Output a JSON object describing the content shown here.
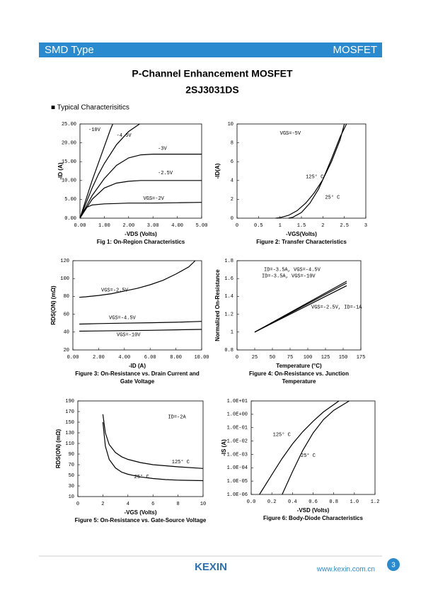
{
  "header": {
    "left": "SMD Type",
    "right": "MOSFET"
  },
  "title": "P-Channel Enhancement MOSFET",
  "part": "2SJ3031DS",
  "section": "■ Typical Characterisitics",
  "footer": {
    "brand": "KEXIN",
    "url": "www.kexin.com.cn",
    "page": "3"
  },
  "chart_data": [
    {
      "type": "line",
      "title": "Fig 1: On-Region Characteristics",
      "xlabel": "-VDS (Volts)",
      "ylabel": "-ID (A)",
      "xlim": [
        0,
        5
      ],
      "ylim": [
        0,
        25
      ],
      "xticks": [
        {
          "value": 0,
          "label": "0.00"
        },
        {
          "value": 1,
          "label": "1.00"
        },
        {
          "value": 2,
          "label": "2.00"
        },
        {
          "value": 3,
          "label": "3.00"
        },
        {
          "value": 4,
          "label": "4.00"
        },
        {
          "value": 5,
          "label": "5.00"
        }
      ],
      "yticks": [
        {
          "value": 0,
          "label": "0.00"
        },
        {
          "value": 5,
          "label": "5.00"
        },
        {
          "value": 10,
          "label": "10.00"
        },
        {
          "value": 15,
          "label": "15.00"
        },
        {
          "value": 20,
          "label": "20.00"
        },
        {
          "value": 25,
          "label": "25.00"
        }
      ],
      "series": [
        {
          "name": "-10V",
          "color": "#000",
          "x": [
            0,
            0.25,
            0.5,
            0.75,
            1,
            1.25,
            1.35
          ],
          "values": [
            0,
            5,
            10,
            14.5,
            19,
            23.5,
            25
          ]
        },
        {
          "name": "-4.5V",
          "color": "#000",
          "x": [
            0,
            0.25,
            0.5,
            0.75,
            1,
            1.5,
            2,
            2.45
          ],
          "values": [
            0,
            4,
            8,
            11.5,
            14.5,
            19.5,
            23,
            25
          ]
        },
        {
          "name": "-3V",
          "color": "#000",
          "x": [
            0,
            0.25,
            0.5,
            1,
            1.5,
            2,
            2.5,
            3,
            4,
            5
          ],
          "values": [
            0,
            3,
            6,
            10.5,
            14,
            16,
            16.8,
            17,
            17,
            17
          ]
        },
        {
          "name": "-2.5V",
          "color": "#000",
          "x": [
            0,
            0.25,
            0.5,
            1,
            1.5,
            2,
            2.5,
            3,
            4,
            5
          ],
          "values": [
            0,
            2.5,
            5,
            8,
            9.3,
            9.8,
            10,
            10,
            10,
            10
          ]
        },
        {
          "name": "VGS=-2V",
          "color": "#000",
          "x": [
            0,
            0.1,
            0.25,
            0.5,
            1,
            1.5,
            2,
            3,
            4,
            5
          ],
          "values": [
            0,
            1.5,
            2.8,
            3.5,
            3.8,
            3.9,
            4,
            4,
            4.1,
            4.2
          ]
        }
      ]
    },
    {
      "type": "line",
      "title": "Figure 2: Transfer Characteristics",
      "xlabel": "-VGS(Volts)",
      "ylabel": "-ID(A)",
      "xlim": [
        0,
        3
      ],
      "ylim": [
        0,
        10
      ],
      "xticks": [
        0,
        0.5,
        1,
        1.5,
        2,
        2.5,
        3
      ],
      "yticks": [
        0,
        2,
        4,
        6,
        8,
        10
      ],
      "annotations": [
        "VGS=-5V"
      ],
      "series": [
        {
          "name": "125° C",
          "color": "#000",
          "x": [
            0.9,
            1,
            1.2,
            1.4,
            1.6,
            1.8,
            2,
            2.2,
            2.4,
            2.5
          ],
          "values": [
            0,
            0.05,
            0.3,
            0.8,
            1.6,
            2.7,
            4.1,
            6,
            8.3,
            10
          ]
        },
        {
          "name": "25° C",
          "color": "#000",
          "x": [
            1.2,
            1.3,
            1.5,
            1.7,
            1.9,
            2,
            2.2,
            2.4,
            2.55
          ],
          "values": [
            0,
            0.1,
            0.6,
            1.6,
            3.1,
            4.1,
            6.3,
            8.6,
            10
          ]
        }
      ]
    },
    {
      "type": "line",
      "title": [
        "Figure 3: On-Resistance vs. Drain Current and",
        "Gate Voltage"
      ],
      "xlabel": "-ID (A)",
      "ylabel": "RDS(ON) (mΩ)",
      "xlim": [
        0,
        10
      ],
      "ylim": [
        20,
        120
      ],
      "xticks": [
        {
          "value": 0,
          "label": "0.00"
        },
        {
          "value": 2,
          "label": "2.00"
        },
        {
          "value": 4,
          "label": "4.00"
        },
        {
          "value": 6,
          "label": "6.00"
        },
        {
          "value": 8,
          "label": "8.00"
        },
        {
          "value": 10,
          "label": "10.00"
        }
      ],
      "yticks": [
        20,
        40,
        60,
        80,
        100,
        120
      ],
      "series": [
        {
          "name": "VGS=-2.5V",
          "color": "#000",
          "x": [
            0.5,
            1,
            2,
            3,
            4,
            5,
            6,
            7,
            8,
            9,
            9.5
          ],
          "values": [
            79,
            79.5,
            81,
            83,
            86,
            89,
            93,
            98,
            105,
            113,
            120
          ]
        },
        {
          "name": "VGS=-4.5V",
          "color": "#000",
          "x": [
            0.5,
            2,
            4,
            6,
            8,
            10
          ],
          "values": [
            49,
            49.5,
            50,
            50.5,
            51,
            52
          ]
        },
        {
          "name": "VGS=-10V",
          "color": "#000",
          "x": [
            0.5,
            2,
            4,
            6,
            8,
            10
          ],
          "values": [
            41,
            41.3,
            41.7,
            42,
            42.5,
            43
          ]
        }
      ]
    },
    {
      "type": "line",
      "title": [
        "Figure 4: On-Resistance vs. Junction",
        "Temperature"
      ],
      "xlabel": "Temperature (°C)",
      "ylabel": "Normalized On-Resistance",
      "xlim": [
        0,
        175
      ],
      "ylim": [
        0.8,
        1.8
      ],
      "xticks": [
        0,
        25,
        50,
        75,
        100,
        125,
        150,
        175
      ],
      "yticks": [
        0.8,
        1,
        1.2,
        1.4,
        1.6,
        1.8
      ],
      "series": [
        {
          "name": "ID=-3.5A, VGS=-4.5V",
          "color": "#000",
          "x": [
            25,
            155
          ],
          "values": [
            1,
            1.57
          ]
        },
        {
          "name": "ID=-3.5A, VGS=-10V",
          "color": "#000",
          "x": [
            25,
            155
          ],
          "values": [
            1,
            1.55
          ]
        },
        {
          "name": "VGS=-2.5V, ID=-1A",
          "color": "#000",
          "x": [
            25,
            155
          ],
          "values": [
            1,
            1.52
          ]
        }
      ]
    },
    {
      "type": "line",
      "title": "Figure 5: On-Resistance vs. Gate-Source Voltage",
      "xlabel": "-VGS (Volts)",
      "ylabel": "RDS(ON) (mΩ)",
      "xlim": [
        0,
        10
      ],
      "ylim": [
        10,
        190
      ],
      "xticks": [
        0,
        2,
        4,
        6,
        8,
        10
      ],
      "yticks": [
        10,
        30,
        50,
        70,
        90,
        110,
        130,
        150,
        170,
        190
      ],
      "annotations": [
        "ID=-2A"
      ],
      "series": [
        {
          "name": "125° C",
          "color": "#000",
          "x": [
            2,
            2.2,
            2.5,
            3,
            3.5,
            4,
            5,
            6,
            7,
            8,
            10
          ],
          "values": [
            165,
            130,
            108,
            93,
            85,
            80,
            74,
            70,
            68,
            66,
            63
          ]
        },
        {
          "name": "25° C",
          "color": "#000",
          "x": [
            2,
            2.2,
            2.5,
            3,
            3.5,
            4,
            5,
            6,
            7,
            8,
            10
          ],
          "values": [
            150,
            105,
            80,
            64,
            56,
            52,
            47,
            44,
            42,
            41,
            40
          ]
        }
      ]
    },
    {
      "type": "line",
      "title": "Figure 6: Body-Diode Characteristics",
      "xlabel": "-VSD (Volts)",
      "ylabel": "-IS (A)",
      "log_y": true,
      "xlim": [
        0,
        1.2
      ],
      "ylim": [
        1e-06,
        10
      ],
      "xticks": [
        {
          "value": 0,
          "label": "0.0"
        },
        {
          "value": 0.2,
          "label": "0.2"
        },
        {
          "value": 0.4,
          "label": "0.4"
        },
        {
          "value": 0.6,
          "label": "0.6"
        },
        {
          "value": 0.8,
          "label": "0.8"
        },
        {
          "value": 1,
          "label": "1.0"
        },
        {
          "value": 1.2,
          "label": "1.2"
        }
      ],
      "yticks": [
        {
          "value": 1e-06,
          "label": "1.0E-06"
        },
        {
          "value": 1e-05,
          "label": "1.0E-05"
        },
        {
          "value": 0.0001,
          "label": "1.0E-04"
        },
        {
          "value": 0.001,
          "label": "1.0E-03"
        },
        {
          "value": 0.01,
          "label": "1.0E-02"
        },
        {
          "value": 0.1,
          "label": "1.0E-01"
        },
        {
          "value": 1,
          "label": "1.0E+00"
        },
        {
          "value": 10,
          "label": "1.0E+01"
        }
      ],
      "series": [
        {
          "name": "125° C",
          "color": "#000",
          "x": [
            0.08,
            0.2,
            0.3,
            0.4,
            0.5,
            0.6,
            0.7,
            0.85
          ],
          "values": [
            1e-06,
            3e-05,
            0.0005,
            0.006,
            0.05,
            0.3,
            1.5,
            10
          ]
        },
        {
          "name": "25° C",
          "color": "#000",
          "x": [
            0.3,
            0.4,
            0.5,
            0.6,
            0.7,
            0.8,
            0.95
          ],
          "values": [
            1e-06,
            5e-05,
            0.002,
            0.04,
            0.4,
            2,
            10
          ]
        }
      ]
    }
  ]
}
